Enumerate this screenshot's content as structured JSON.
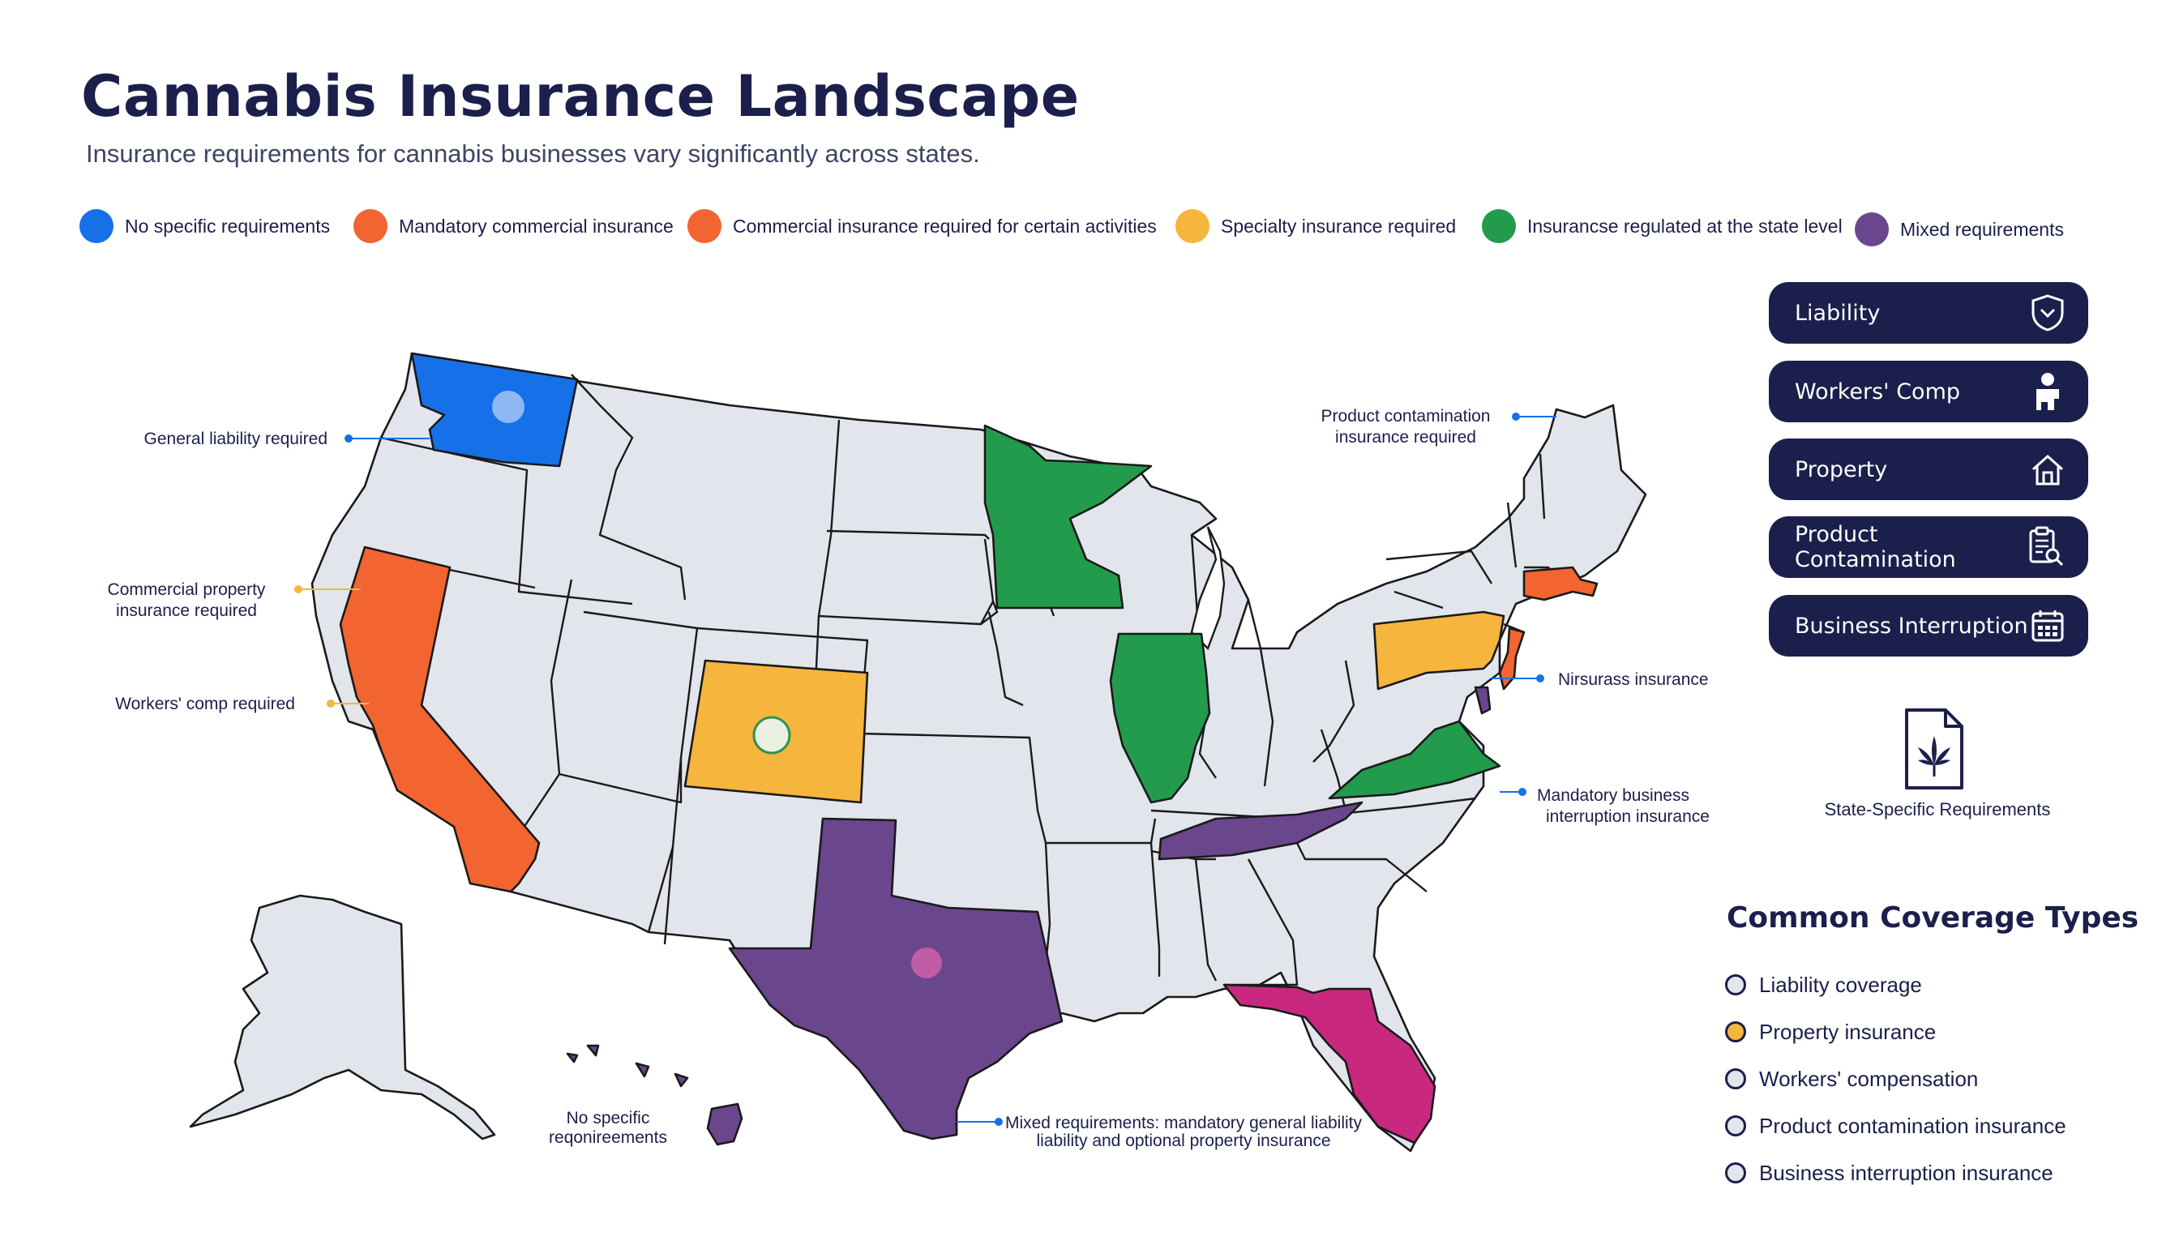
{
  "title": "Cannabis Insurance Landscape",
  "subtitle": "Insurance requirements for cannabis businesses vary significantly across states.",
  "colors": {
    "blue": "#1670e8",
    "orange": "#f26430",
    "yellow": "#f6b53c",
    "green": "#229b4c",
    "purple": "#6a468c",
    "magenta": "#c8287e",
    "gray": "#e3e5ec",
    "navy": "#1b1f4b"
  },
  "legend": [
    {
      "label": "No specific requirements",
      "color": "#1670e8"
    },
    {
      "label": "Mandatory commercial insurance",
      "color": "#f26430"
    },
    {
      "label": "Commercial insurance required for certain activities",
      "color": "#f26430"
    },
    {
      "label": "Specialty insurance required",
      "color": "#f6b53c"
    },
    {
      "label": "Insurancse regulated at the state level",
      "color": "#229b4c"
    },
    {
      "label": "Mixed requirements",
      "color": "#6a468c"
    }
  ],
  "callouts": {
    "general_liability": "General liability required",
    "commercial_property": [
      "Commercial property",
      "insurance required"
    ],
    "workers_comp": "Workers' comp required",
    "product_contamination": [
      "Product contamination",
      "insurance required"
    ],
    "nirsurass": "Nirsurass insurance",
    "business_interruption": [
      "Mandatory business",
      "interruption insurance"
    ],
    "no_specific": [
      "No specific",
      "reqonireements"
    ],
    "mixed": [
      "Mixed requirements: mandatory general liability",
      "liability and optional property insurance"
    ]
  },
  "coverage_buttons": [
    {
      "label": "Liability",
      "icon": "shield-icon"
    },
    {
      "label": "Workers' Comp",
      "icon": "worker-icon"
    },
    {
      "label": "Property",
      "icon": "house-icon"
    },
    {
      "label": "Product Contamination",
      "icon": "clipboard-search-icon"
    },
    {
      "label": "Business Interruption",
      "icon": "calendar-icon"
    }
  ],
  "state_specific": {
    "label": "State-Specific Requirements",
    "icon": "cannabis-document-icon"
  },
  "common_coverage": {
    "title": "Common Coverage Types",
    "items": [
      {
        "label": "Liability coverage",
        "fill": "#e3e5ec"
      },
      {
        "label": "Property insurance",
        "fill": "#f6b53c"
      },
      {
        "label": "Workers' compensation",
        "fill": "#e3e5ec"
      },
      {
        "label": "Product contamination insurance",
        "fill": "#e3e5ec"
      },
      {
        "label": "Business interruption insurance",
        "fill": "#e3e5ec"
      }
    ]
  }
}
